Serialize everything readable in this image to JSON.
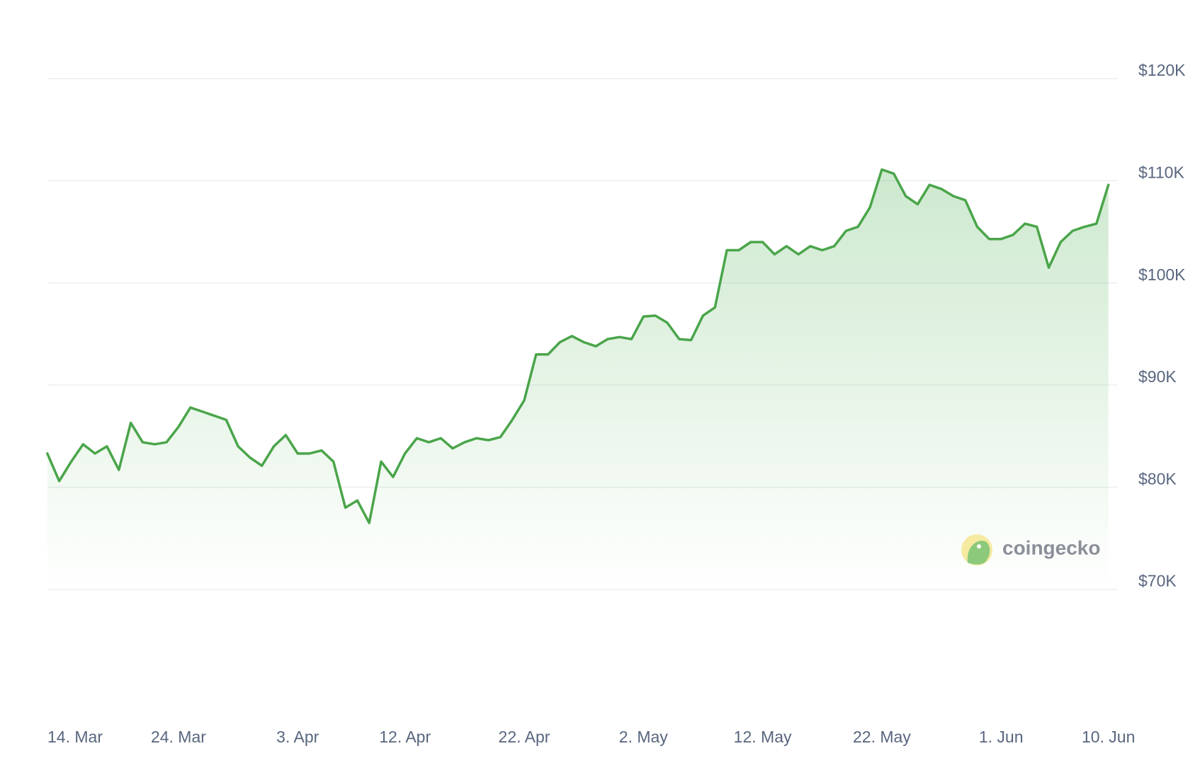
{
  "chart_data": {
    "type": "line",
    "watermark": "coingecko",
    "categories": [
      null,
      "14. Mar",
      null,
      null,
      null,
      null,
      null,
      null,
      null,
      null,
      null,
      "24. Mar",
      null,
      null,
      null,
      null,
      null,
      null,
      null,
      null,
      null,
      "3. Apr",
      null,
      null,
      null,
      null,
      null,
      null,
      null,
      null,
      "12. Apr",
      null,
      null,
      null,
      null,
      null,
      null,
      null,
      null,
      null,
      "22. Apr",
      null,
      null,
      null,
      null,
      null,
      null,
      null,
      null,
      null,
      "2. May",
      null,
      null,
      null,
      null,
      null,
      null,
      null,
      null,
      null,
      "12. May",
      null,
      null,
      null,
      null,
      null,
      null,
      null,
      null,
      null,
      "22. May",
      null,
      null,
      null,
      null,
      null,
      null,
      null,
      null,
      null,
      "1. Jun",
      null,
      null,
      null,
      null,
      null,
      null,
      null,
      null,
      "10. Jun"
    ],
    "series": [
      {
        "color": "#4aa54a",
        "values": [
          83300,
          80600,
          82500,
          84200,
          83300,
          84000,
          81700,
          86300,
          84400,
          84200,
          84400,
          85900,
          87800,
          87400,
          87000,
          86600,
          84000,
          82900,
          82100,
          84000,
          85100,
          83300,
          83300,
          83600,
          82500,
          78000,
          78700,
          76500,
          82500,
          81000,
          83300,
          84800,
          84400,
          84800,
          83800,
          84400,
          84800,
          84600,
          84900,
          86600,
          88500,
          93000,
          93000,
          94200,
          94800,
          94200,
          93800,
          94500,
          94700,
          94500,
          96700,
          96800,
          96100,
          94500,
          94400,
          96800,
          97600,
          103200,
          103200,
          104000,
          104000,
          102800,
          103600,
          102800,
          103600,
          103200,
          103600,
          105100,
          105500,
          107400,
          111100,
          110700,
          108500,
          107700,
          109600,
          109200,
          108500,
          108100,
          105500,
          104300,
          104300,
          104700,
          105800,
          105500,
          101500,
          104000,
          105100,
          105500,
          105800,
          109600
        ]
      }
    ],
    "ylim": [
      57500,
      127700
    ],
    "yticks": [
      {
        "value": 70000,
        "label": "$70K"
      },
      {
        "value": 80000,
        "label": "$80K"
      },
      {
        "value": 90000,
        "label": "$90K"
      },
      {
        "value": 100000,
        "label": "$100K"
      },
      {
        "value": 110000,
        "label": "$110K"
      },
      {
        "value": 120000,
        "label": "$120K"
      }
    ],
    "grid": true
  }
}
